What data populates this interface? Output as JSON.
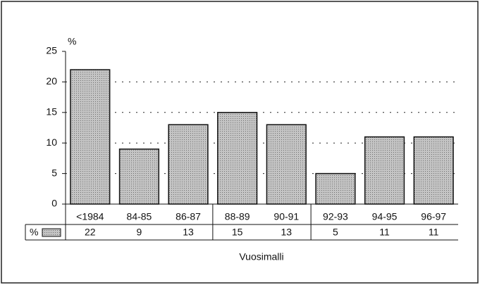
{
  "chart_data": {
    "type": "bar",
    "y_axis_label": "%",
    "x_axis_label": "Vuosimalli",
    "categories": [
      "<1984",
      "84-85",
      "86-87",
      "88-89",
      "90-91",
      "92-93",
      "94-95",
      "96-97"
    ],
    "series": [
      {
        "name": "%",
        "color": "#a8a8a8",
        "values": [
          22,
          9,
          13,
          15,
          13,
          5,
          11,
          11
        ]
      }
    ],
    "ylim": [
      0,
      25
    ],
    "yticks": [
      0,
      5,
      10,
      15,
      20,
      25
    ],
    "grid": true
  }
}
